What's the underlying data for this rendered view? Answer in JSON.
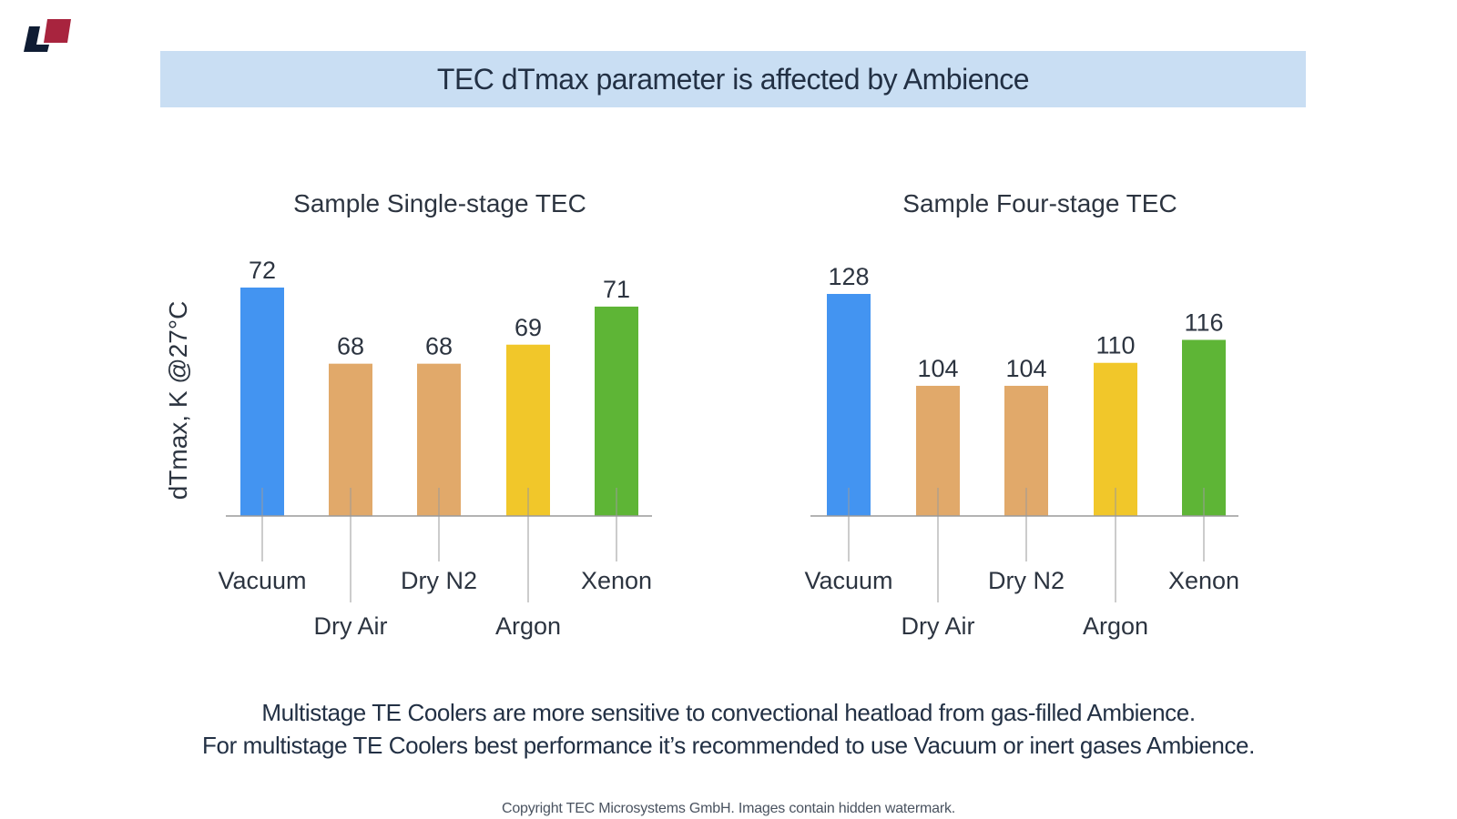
{
  "header": {
    "title": "TEC dTmax parameter is affected by Ambience"
  },
  "colors": {
    "logo_dark": "#0f1c33",
    "logo_red": "#a8243e",
    "title_band": "#c9def3",
    "axis": "#9a9a9a"
  },
  "chart_data": [
    {
      "type": "bar",
      "title": "Sample Single-stage TEC",
      "ylabel": "dTmax, K @27°C",
      "categories": [
        "Vacuum",
        "Dry Air",
        "Dry N2",
        "Argon",
        "Xenon"
      ],
      "values": [
        72,
        68,
        68,
        69,
        71
      ],
      "bar_colors": [
        "#4394f1",
        "#e1a96a",
        "#e1a96a",
        "#f1c72a",
        "#5eb536"
      ],
      "ylim": [
        60,
        72
      ],
      "grid": false,
      "legend": "none"
    },
    {
      "type": "bar",
      "title": "Sample Four-stage TEC",
      "ylabel": "",
      "categories": [
        "Vacuum",
        "Dry Air",
        "Dry N2",
        "Argon",
        "Xenon"
      ],
      "values": [
        128,
        104,
        104,
        110,
        116
      ],
      "bar_colors": [
        "#4394f1",
        "#e1a96a",
        "#e1a96a",
        "#f1c72a",
        "#5eb536"
      ],
      "ylim": [
        70,
        128
      ],
      "grid": false,
      "legend": "none"
    }
  ],
  "footer": {
    "line1": "Multistage TE Coolers are more sensitive to convectional heatload from gas-filled Ambience.",
    "line2": "For multistage TE Coolers best performance it’s recommended to use Vacuum or inert gases Ambience.",
    "copyright": "Copyright TEC Microsystems GmbH. Images contain hidden watermark."
  }
}
